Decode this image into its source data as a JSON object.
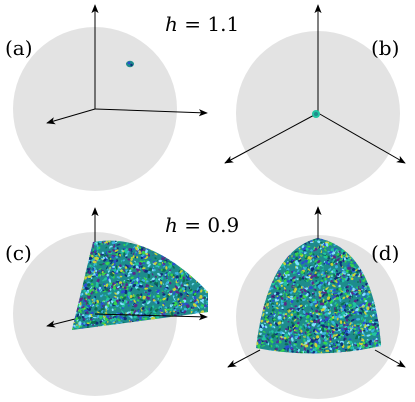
{
  "rows": [
    {
      "h_var": "h",
      "h_eq": "= 1.1"
    },
    {
      "h_var": "h",
      "h_eq": "= 0.9"
    }
  ],
  "panels": [
    {
      "label": "(a)"
    },
    {
      "label": "(b)"
    },
    {
      "label": "(c)"
    },
    {
      "label": "(d)"
    }
  ],
  "colors": {
    "sphere": "#e3e3e3",
    "axis": "#000000",
    "cluster": [
      "#1e8c8c",
      "#21c4a0",
      "#2a4ed0",
      "#37d64a",
      "#0f2f7a",
      "#7fe0ff",
      "#5a2a8a",
      "#c8d23a",
      "#0c6e54",
      "#3bb3e0"
    ]
  }
}
